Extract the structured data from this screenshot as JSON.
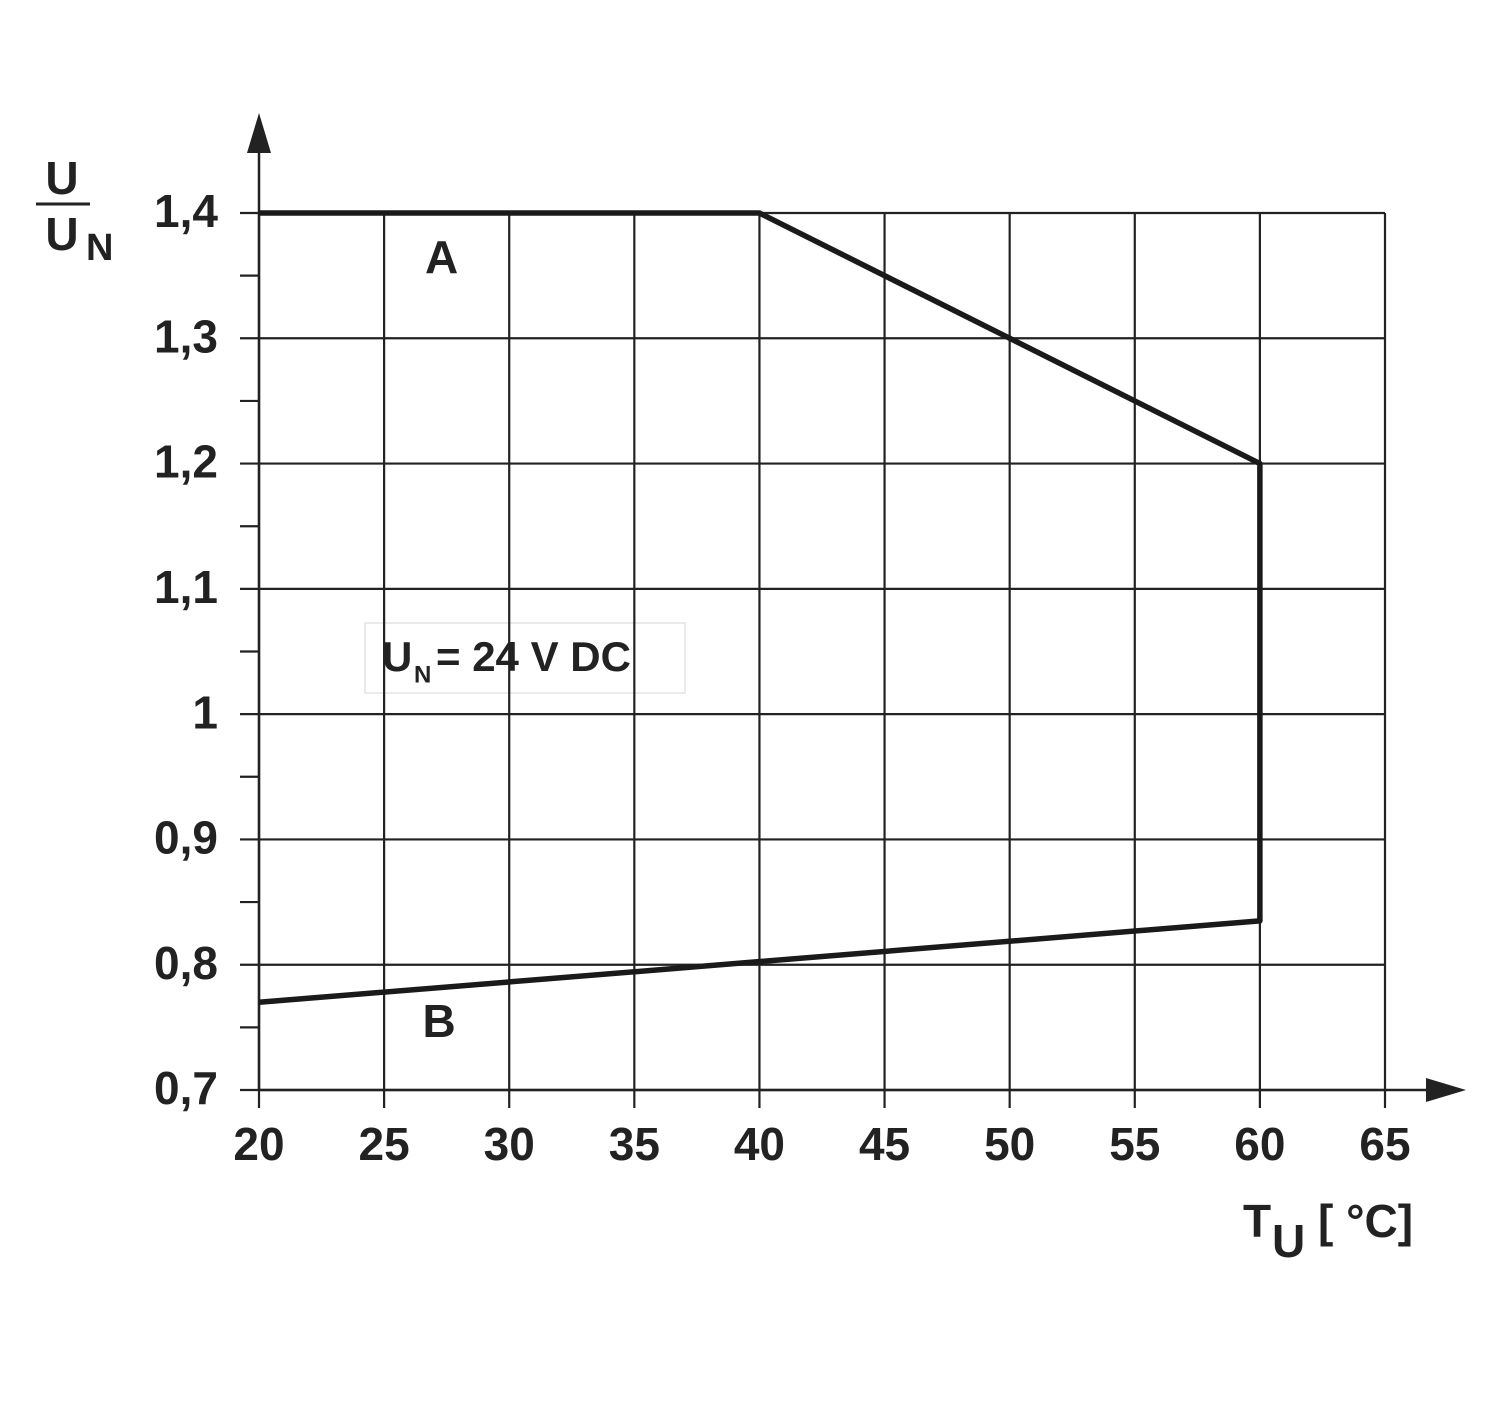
{
  "chart_data": {
    "type": "line",
    "x": [
      20,
      40,
      60,
      60,
      20
    ],
    "series": [
      {
        "color": "#1a1a1a",
        "values": [
          1.4,
          1.4,
          1.2,
          0.835,
          0.77
        ]
      }
    ],
    "xlim": [
      20,
      65
    ],
    "xticks": [
      20,
      25,
      30,
      35,
      40,
      45,
      50,
      55,
      60,
      65
    ],
    "ylim": [
      0.7,
      1.4
    ],
    "yticks": [
      {
        "value": 0.7,
        "label": "0,7"
      },
      {
        "value": 0.8,
        "label": "0,8"
      },
      {
        "value": 0.9,
        "label": "0,9"
      },
      1,
      {
        "value": 1.1,
        "label": "1,1"
      },
      {
        "value": 1.2,
        "label": "1,2"
      },
      {
        "value": 1.3,
        "label": "1,3"
      },
      {
        "value": 1.4,
        "label": "1,4"
      }
    ],
    "yminorticks": [
      0.75,
      0.85,
      0.95,
      1.05,
      1.15,
      1.25,
      1.35
    ],
    "grid": true,
    "ylabel": {
      "numerator": "U",
      "denominator": "U",
      "subscript": "N"
    },
    "xlabel": {
      "symbol": "T",
      "subscript": "U",
      "unit": "[ °C]"
    },
    "annotations": [
      {
        "text": "A",
        "x": 27.3,
        "y": 1.362
      },
      {
        "text": "B",
        "x": 27.2,
        "y": 0.752
      }
    ],
    "note": {
      "symbol": "U",
      "subscript": "N",
      "text": "= 24 V DC"
    }
  }
}
